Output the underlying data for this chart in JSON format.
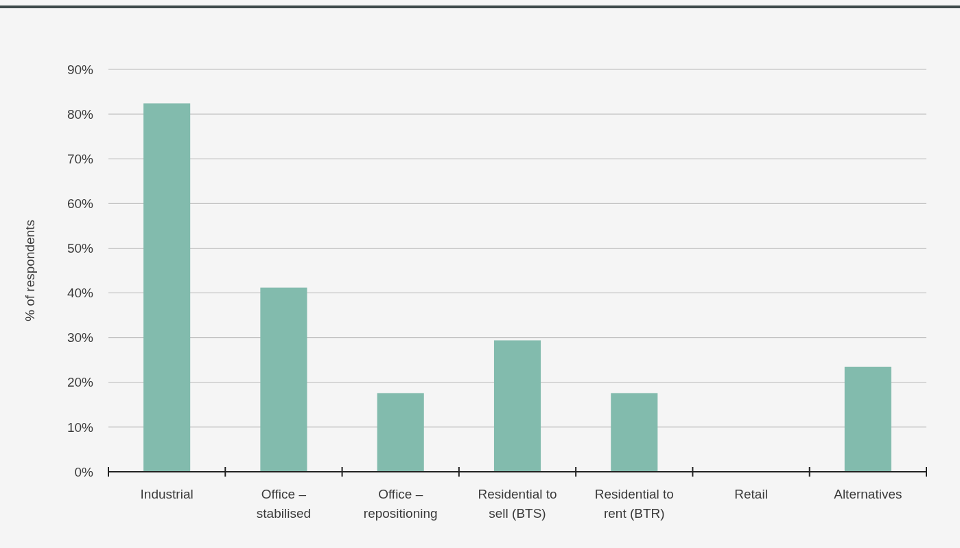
{
  "chart_data": {
    "type": "bar",
    "ylabel": "% of respondents",
    "categories": [
      "Industrial",
      "Office – stabilised",
      "Office – repositioning",
      "Residential to sell (BTS)",
      "Residential to rent (BTR)",
      "Retail",
      "Alternatives"
    ],
    "values": [
      82.4,
      41.2,
      17.6,
      29.4,
      17.6,
      0,
      23.5
    ],
    "color": "#82bbad",
    "ylim": [
      0,
      90
    ],
    "yticks": [
      {
        "value": 0,
        "label": "0%"
      },
      {
        "value": 10,
        "label": "10%"
      },
      {
        "value": 20,
        "label": "20%"
      },
      {
        "value": 30,
        "label": "30%"
      },
      {
        "value": 40,
        "label": "40%"
      },
      {
        "value": 50,
        "label": "50%"
      },
      {
        "value": 60,
        "label": "60%"
      },
      {
        "value": 70,
        "label": "70%"
      },
      {
        "value": 80,
        "label": "80%"
      },
      {
        "value": 90,
        "label": "90%"
      }
    ],
    "grid": "y"
  }
}
